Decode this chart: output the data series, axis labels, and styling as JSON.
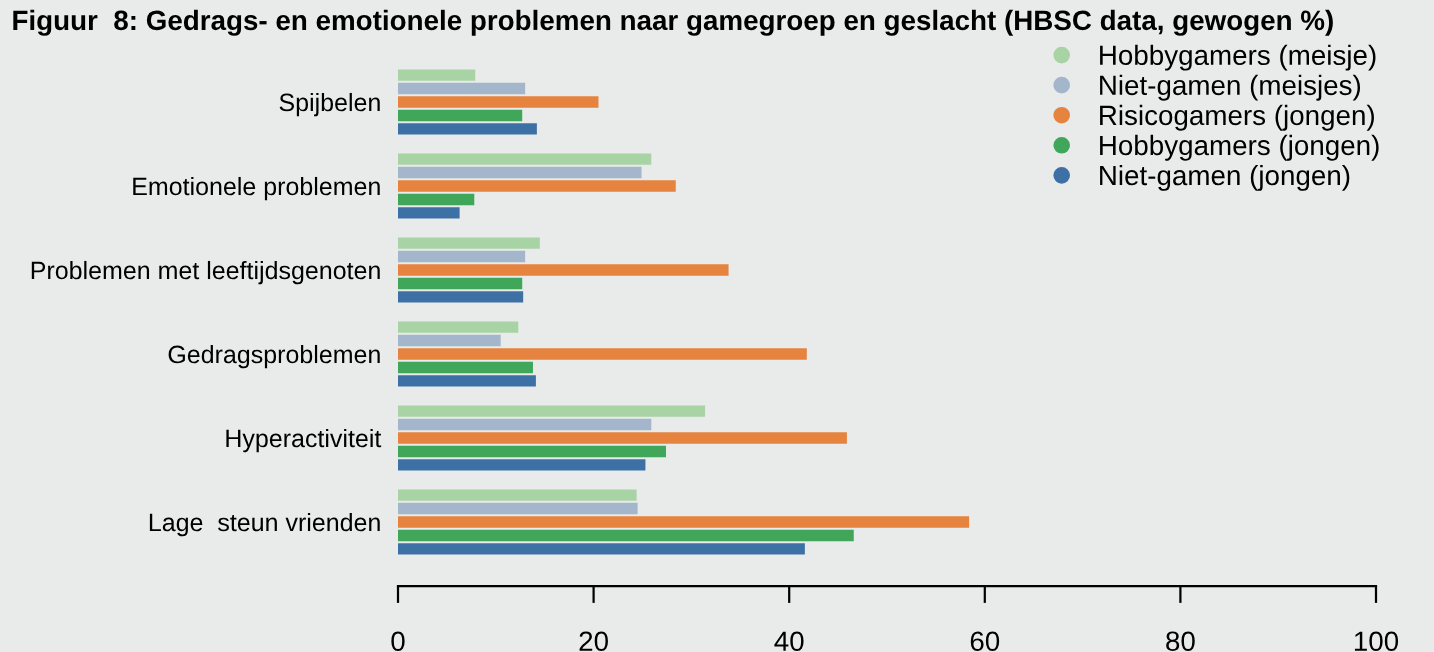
{
  "chart_data": {
    "type": "bar",
    "orientation": "horizontal",
    "title": "Figuur  8: Gedrags- en emotionele problemen naar gamegroep en geslacht (HBSC data, gewogen %)",
    "categories": [
      "Spijbelen",
      "Emotionele problemen",
      "Problemen met leeftijdsgenoten",
      "Gedragsproblemen",
      "Hyperactiviteit",
      "Lage  steun vrienden"
    ],
    "series": [
      {
        "name": "Hobbygamers (meisje)",
        "color": "#a8d3a4",
        "values": [
          7.9,
          25.9,
          14.5,
          12.3,
          31.4,
          24.4
        ]
      },
      {
        "name": "Niet-gamen (meisjes)",
        "color": "#a3b6cc",
        "values": [
          13.0,
          24.9,
          13.0,
          10.5,
          25.9,
          24.5
        ]
      },
      {
        "name": "Risicogamers (jongen)",
        "color": "#e5833f",
        "values": [
          20.5,
          28.4,
          33.8,
          41.8,
          45.9,
          58.4
        ]
      },
      {
        "name": "Hobbygamers (jongen)",
        "color": "#3fa65a",
        "values": [
          12.7,
          7.8,
          12.7,
          13.8,
          27.4,
          46.6
        ]
      },
      {
        "name": "Niet-gamen (jongen)",
        "color": "#3d70a5",
        "values": [
          14.2,
          6.3,
          12.8,
          14.1,
          25.3,
          41.6
        ]
      }
    ],
    "xlim": [
      0,
      100
    ],
    "xticks": [
      0,
      20,
      40,
      60,
      80,
      100
    ],
    "grid": false,
    "legend": "top right"
  }
}
